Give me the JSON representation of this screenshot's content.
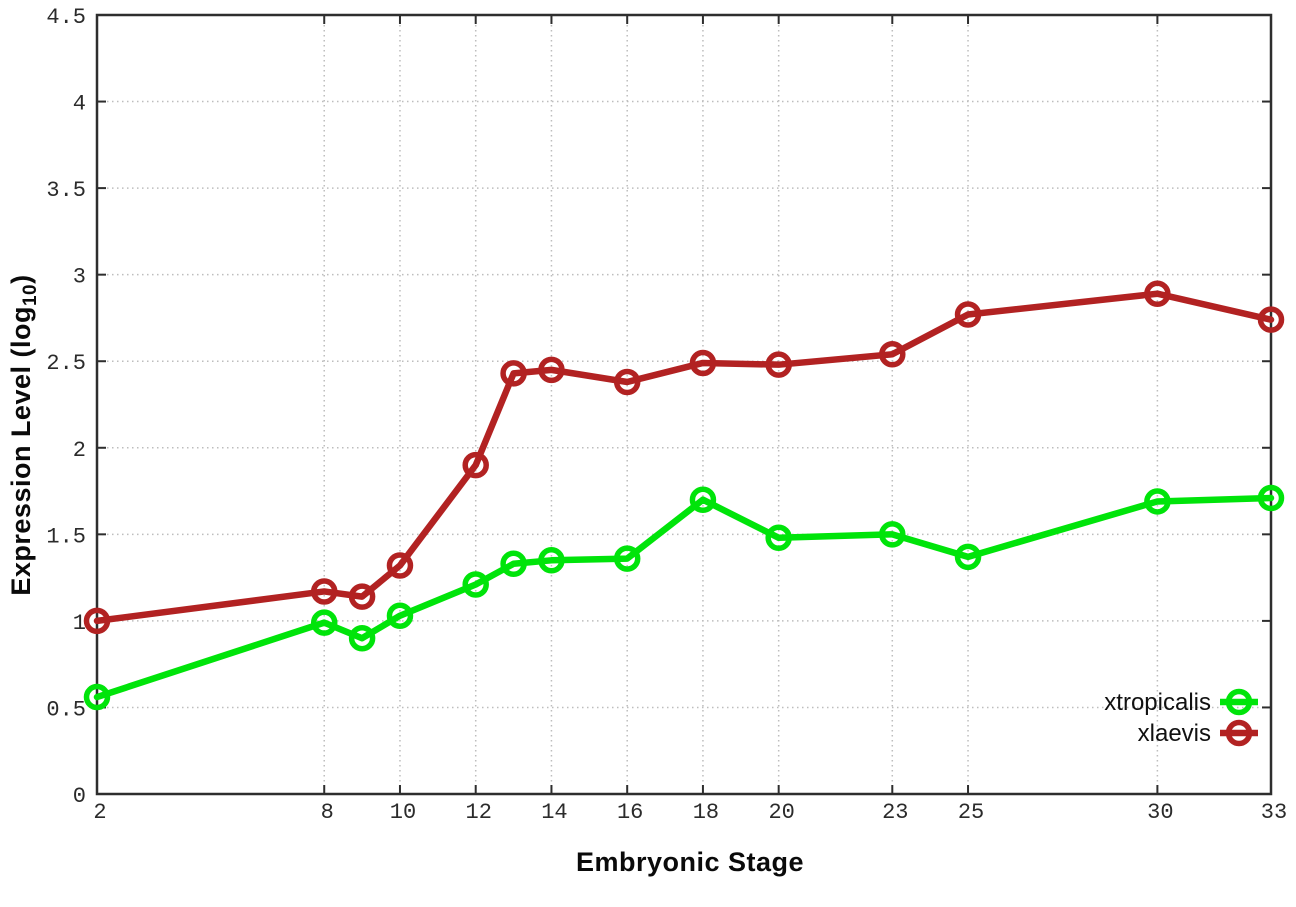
{
  "chart_data": {
    "type": "line",
    "title": "",
    "xlabel": "Embryonic Stage",
    "ylabel": {
      "main": "Expression Level (log",
      "sub": "10",
      "end": ")"
    },
    "x": [
      2,
      8,
      9,
      10,
      12,
      13,
      14,
      16,
      18,
      20,
      23,
      25,
      30,
      33
    ],
    "series": [
      {
        "name": "xtropicalis",
        "color": "#00e40a",
        "marker": "open-circle",
        "values": [
          0.56,
          0.99,
          0.9,
          1.03,
          1.21,
          1.33,
          1.35,
          1.36,
          1.7,
          1.48,
          1.5,
          1.37,
          1.69,
          1.71
        ]
      },
      {
        "name": "xlaevis",
        "color": "#b22222",
        "marker": "open-circle",
        "values": [
          1.0,
          1.17,
          1.14,
          1.32,
          1.9,
          2.43,
          2.45,
          2.38,
          2.49,
          2.48,
          2.54,
          2.77,
          2.89,
          2.74
        ]
      }
    ],
    "x_tick_labels": [
      "2",
      "8",
      "10",
      "12",
      "14",
      "16",
      "18",
      "20",
      "23",
      "25",
      "30",
      "33"
    ],
    "x_tick_values": [
      2,
      8,
      10,
      12,
      14,
      16,
      18,
      20,
      23,
      25,
      30,
      33
    ],
    "y_tick_labels": [
      "0",
      "0.5",
      "1",
      "1.5",
      "2",
      "2.5",
      "3",
      "3.5",
      "4",
      "4.5"
    ],
    "y_tick_values": [
      0,
      0.5,
      1,
      1.5,
      2,
      2.5,
      3,
      3.5,
      4,
      4.5
    ],
    "xlim": [
      2,
      33
    ],
    "ylim": [
      0,
      4.5
    ],
    "grid": true,
    "legend": {
      "position": "bottom-right",
      "entries": [
        "xtropicalis",
        "xlaevis"
      ]
    }
  },
  "styles": {
    "background": "#ffffff",
    "grid_color": "#bdbdbd",
    "axis_color": "#2e2e2e",
    "tick_text_color": "#2b2b2b",
    "title_text_color": "#0a0a0a",
    "legend_text_color": "#111111"
  }
}
